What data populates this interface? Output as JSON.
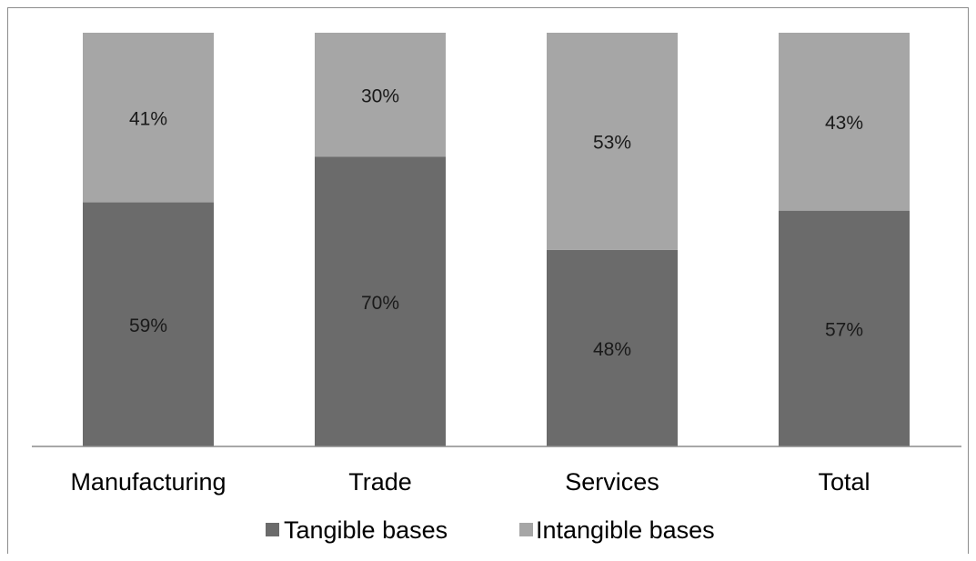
{
  "chart_data": {
    "type": "bar",
    "stacked": "percent",
    "categories": [
      "Manufacturing",
      "Trade",
      "Services",
      "Total"
    ],
    "series": [
      {
        "name": "Tangible bases",
        "values": [
          59,
          70,
          48,
          57
        ],
        "labels": [
          "59%",
          "70%",
          "48%",
          "57%"
        ]
      },
      {
        "name": "Intangible bases",
        "values": [
          41,
          30,
          53,
          43
        ],
        "labels": [
          "41%",
          "30%",
          "53%",
          "43%"
        ]
      }
    ],
    "title": "",
    "xlabel": "",
    "ylabel": "",
    "ylim": [
      0,
      100
    ],
    "grid": false,
    "legend_position": "bottom",
    "colors": {
      "Tangible bases": "#6b6b6b",
      "Intangible bases": "#a6a6a6"
    }
  }
}
